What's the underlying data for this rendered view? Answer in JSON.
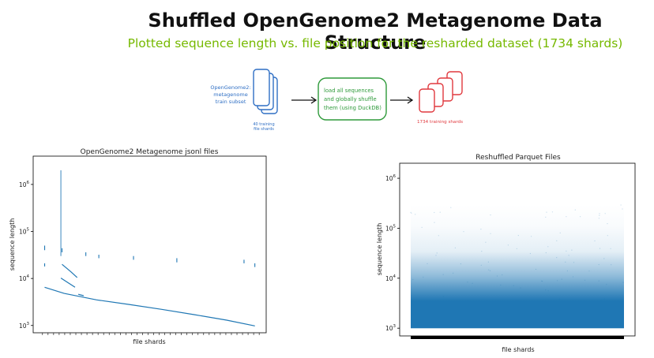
{
  "header": {
    "title": "Shuffled OpenGenome2 Metagenome Data Structure",
    "subtitle": "Plotted sequence length vs. file position for the resharded dataset (1734 shards)"
  },
  "diagram": {
    "source_label_lines": [
      "OpenGenome2:",
      "metagenome",
      "train subset"
    ],
    "source_count_lines": [
      "40 training",
      "file shards"
    ],
    "process_lines": [
      "load all sequences",
      "and globally shuffle",
      "them (using DuckDB)"
    ],
    "output_label": "1734 training shards",
    "colors": {
      "source": "#2f6fc4",
      "process": "#2e9a3a",
      "output": "#e0393e"
    }
  },
  "chart_data": [
    {
      "type": "line",
      "title": "OpenGenome2 Metagenome jsonl files",
      "xlabel": "file shards",
      "ylabel": "sequence length",
      "yscale": "log",
      "ylim": [
        700,
        4000000
      ],
      "yticks": [
        {
          "value": 1000,
          "label": "10^3"
        },
        {
          "value": 10000,
          "label": "10^4"
        },
        {
          "value": 100000,
          "label": "10^5"
        },
        {
          "value": 1000000,
          "label": "10^6"
        }
      ],
      "series": [
        {
          "values": [
            [
              0.01,
              6500
            ],
            [
              0.1,
              4800
            ],
            [
              0.25,
              3500
            ],
            [
              0.4,
              2800
            ],
            [
              0.55,
              2200
            ],
            [
              0.7,
              1700
            ],
            [
              0.85,
              1300
            ],
            [
              0.98,
              980
            ]
          ]
        },
        {
          "values": [
            [
              0.085,
              10200
            ],
            [
              0.12,
              8000
            ],
            [
              0.15,
              6500
            ]
          ]
        },
        {
          "values": [
            [
              0.09,
              20000
            ],
            [
              0.13,
              14000
            ],
            [
              0.16,
              10500
            ]
          ]
        },
        {
          "values": [
            [
              0.165,
              4600
            ],
            [
              0.19,
              4300
            ]
          ]
        }
      ],
      "spikes": [
        {
          "x": 0.085,
          "from": 30000,
          "to": 2000000
        },
        {
          "x": 0.01,
          "from": 40000,
          "to": 50000
        },
        {
          "x": 0.09,
          "from": 36000,
          "to": 44000
        },
        {
          "x": 0.2,
          "from": 30000,
          "to": 36000
        },
        {
          "x": 0.26,
          "from": 27000,
          "to": 32000
        },
        {
          "x": 0.42,
          "from": 25000,
          "to": 30000
        },
        {
          "x": 0.62,
          "from": 22000,
          "to": 27000
        },
        {
          "x": 0.93,
          "from": 21000,
          "to": 25000
        },
        {
          "x": 0.98,
          "from": 17500,
          "to": 21000
        },
        {
          "x": 0.01,
          "from": 18000,
          "to": 21000
        }
      ],
      "xtick_count": 40
    },
    {
      "type": "scatter",
      "title": "Reshuffled Parquet Files",
      "xlabel": "file shards",
      "ylabel": "sequence length",
      "yscale": "log",
      "ylim": [
        700,
        2000000
      ],
      "yticks": [
        {
          "value": 1000,
          "label": "10^3"
        },
        {
          "value": 10000,
          "label": "10^4"
        },
        {
          "value": 100000,
          "label": "10^5"
        },
        {
          "value": 1000000,
          "label": "10^6"
        }
      ],
      "density_range": {
        "min": 1000,
        "dense_top": 3000,
        "sparse_top": 300000
      },
      "color": "#1f77b4",
      "xtick_count": 1734
    }
  ]
}
